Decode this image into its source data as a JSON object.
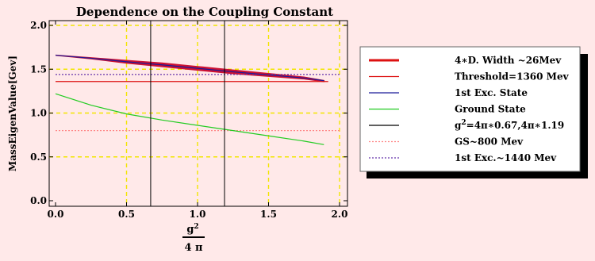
{
  "chart_data": {
    "type": "line",
    "title": "Dependence on the Coupling Constant",
    "ylabel": "MassEigenValue[Gev]",
    "xlabel_numerator": "g",
    "xlabel_numerator_sup": "2",
    "xlabel_denominator": "4 π",
    "xlim": [
      0.0,
      2.0
    ],
    "ylim": [
      0.0,
      2.0
    ],
    "xticks": [
      0.0,
      0.5,
      1.0,
      1.5,
      2.0
    ],
    "xtick_labels": [
      "0.0",
      "0.5",
      "1.0",
      "1.5",
      "2.0"
    ],
    "yticks": [
      0.0,
      0.5,
      1.0,
      1.5,
      2.0
    ],
    "ytick_labels": [
      "0.0",
      "0.5",
      "1.0",
      "1.5",
      "2.0"
    ],
    "grid": "dashed yellow",
    "legend_position": "right",
    "band": {
      "color": "#cc1133",
      "x": [
        0.0,
        0.25,
        0.5,
        0.75,
        1.0,
        1.25,
        1.5,
        1.75,
        1.89
      ],
      "upper": [
        1.66,
        1.63,
        1.6,
        1.57,
        1.53,
        1.49,
        1.45,
        1.41,
        1.37
      ],
      "lower": [
        1.66,
        1.62,
        1.57,
        1.53,
        1.49,
        1.45,
        1.42,
        1.39,
        1.36
      ]
    },
    "series": [
      {
        "key": "threshold",
        "color": "#dd1111",
        "x": [
          0.0,
          1.92
        ],
        "values": [
          1.36,
          1.36
        ]
      },
      {
        "key": "first_excited",
        "color": "#1a1a99",
        "x": [
          0.0,
          0.25,
          0.5,
          0.75,
          1.0,
          1.25,
          1.5,
          1.75,
          1.89
        ],
        "values": [
          1.66,
          1.625,
          1.585,
          1.55,
          1.51,
          1.47,
          1.435,
          1.4,
          1.37
        ]
      },
      {
        "key": "ground_state",
        "color": "#22cc22",
        "x": [
          0.0,
          0.25,
          0.5,
          0.75,
          1.0,
          1.25,
          1.5,
          1.75,
          1.89
        ],
        "values": [
          1.22,
          1.09,
          0.99,
          0.92,
          0.86,
          0.8,
          0.74,
          0.68,
          0.64
        ]
      }
    ],
    "vlines": {
      "color": "#000000",
      "x": [
        0.67,
        1.19
      ]
    },
    "hlines": [
      {
        "key": "gs_ref",
        "color": "#ff8888",
        "style": "dotted",
        "y": 0.8
      },
      {
        "key": "exc_ref",
        "color": "#6633aa",
        "style": "dotted",
        "y": 1.44
      }
    ],
    "legend": [
      {
        "key": "width",
        "label": "4∗D. Width ~26Mev",
        "color": "#dd1111",
        "style": "thick"
      },
      {
        "key": "threshold",
        "label": "Threshold=1360 Mev",
        "color": "#dd1111",
        "style": "solid"
      },
      {
        "key": "first_excited",
        "label": "1st Exc. State",
        "color": "#1a1a99",
        "style": "solid"
      },
      {
        "key": "ground_state",
        "label": "Ground State",
        "color": "#22cc22",
        "style": "solid"
      },
      {
        "key": "vlines",
        "label_prefix": "g",
        "label_sup": "2",
        "label_rest": "=4π∗0.67,4π∗1.19",
        "color": "#000000",
        "style": "solid"
      },
      {
        "key": "gs_ref",
        "label": "GS~800 Mev",
        "color": "#ff8888",
        "style": "dotted"
      },
      {
        "key": "exc_ref",
        "label": "1st Exc.~1440 Mev",
        "color": "#6633aa",
        "style": "dotted"
      }
    ]
  }
}
